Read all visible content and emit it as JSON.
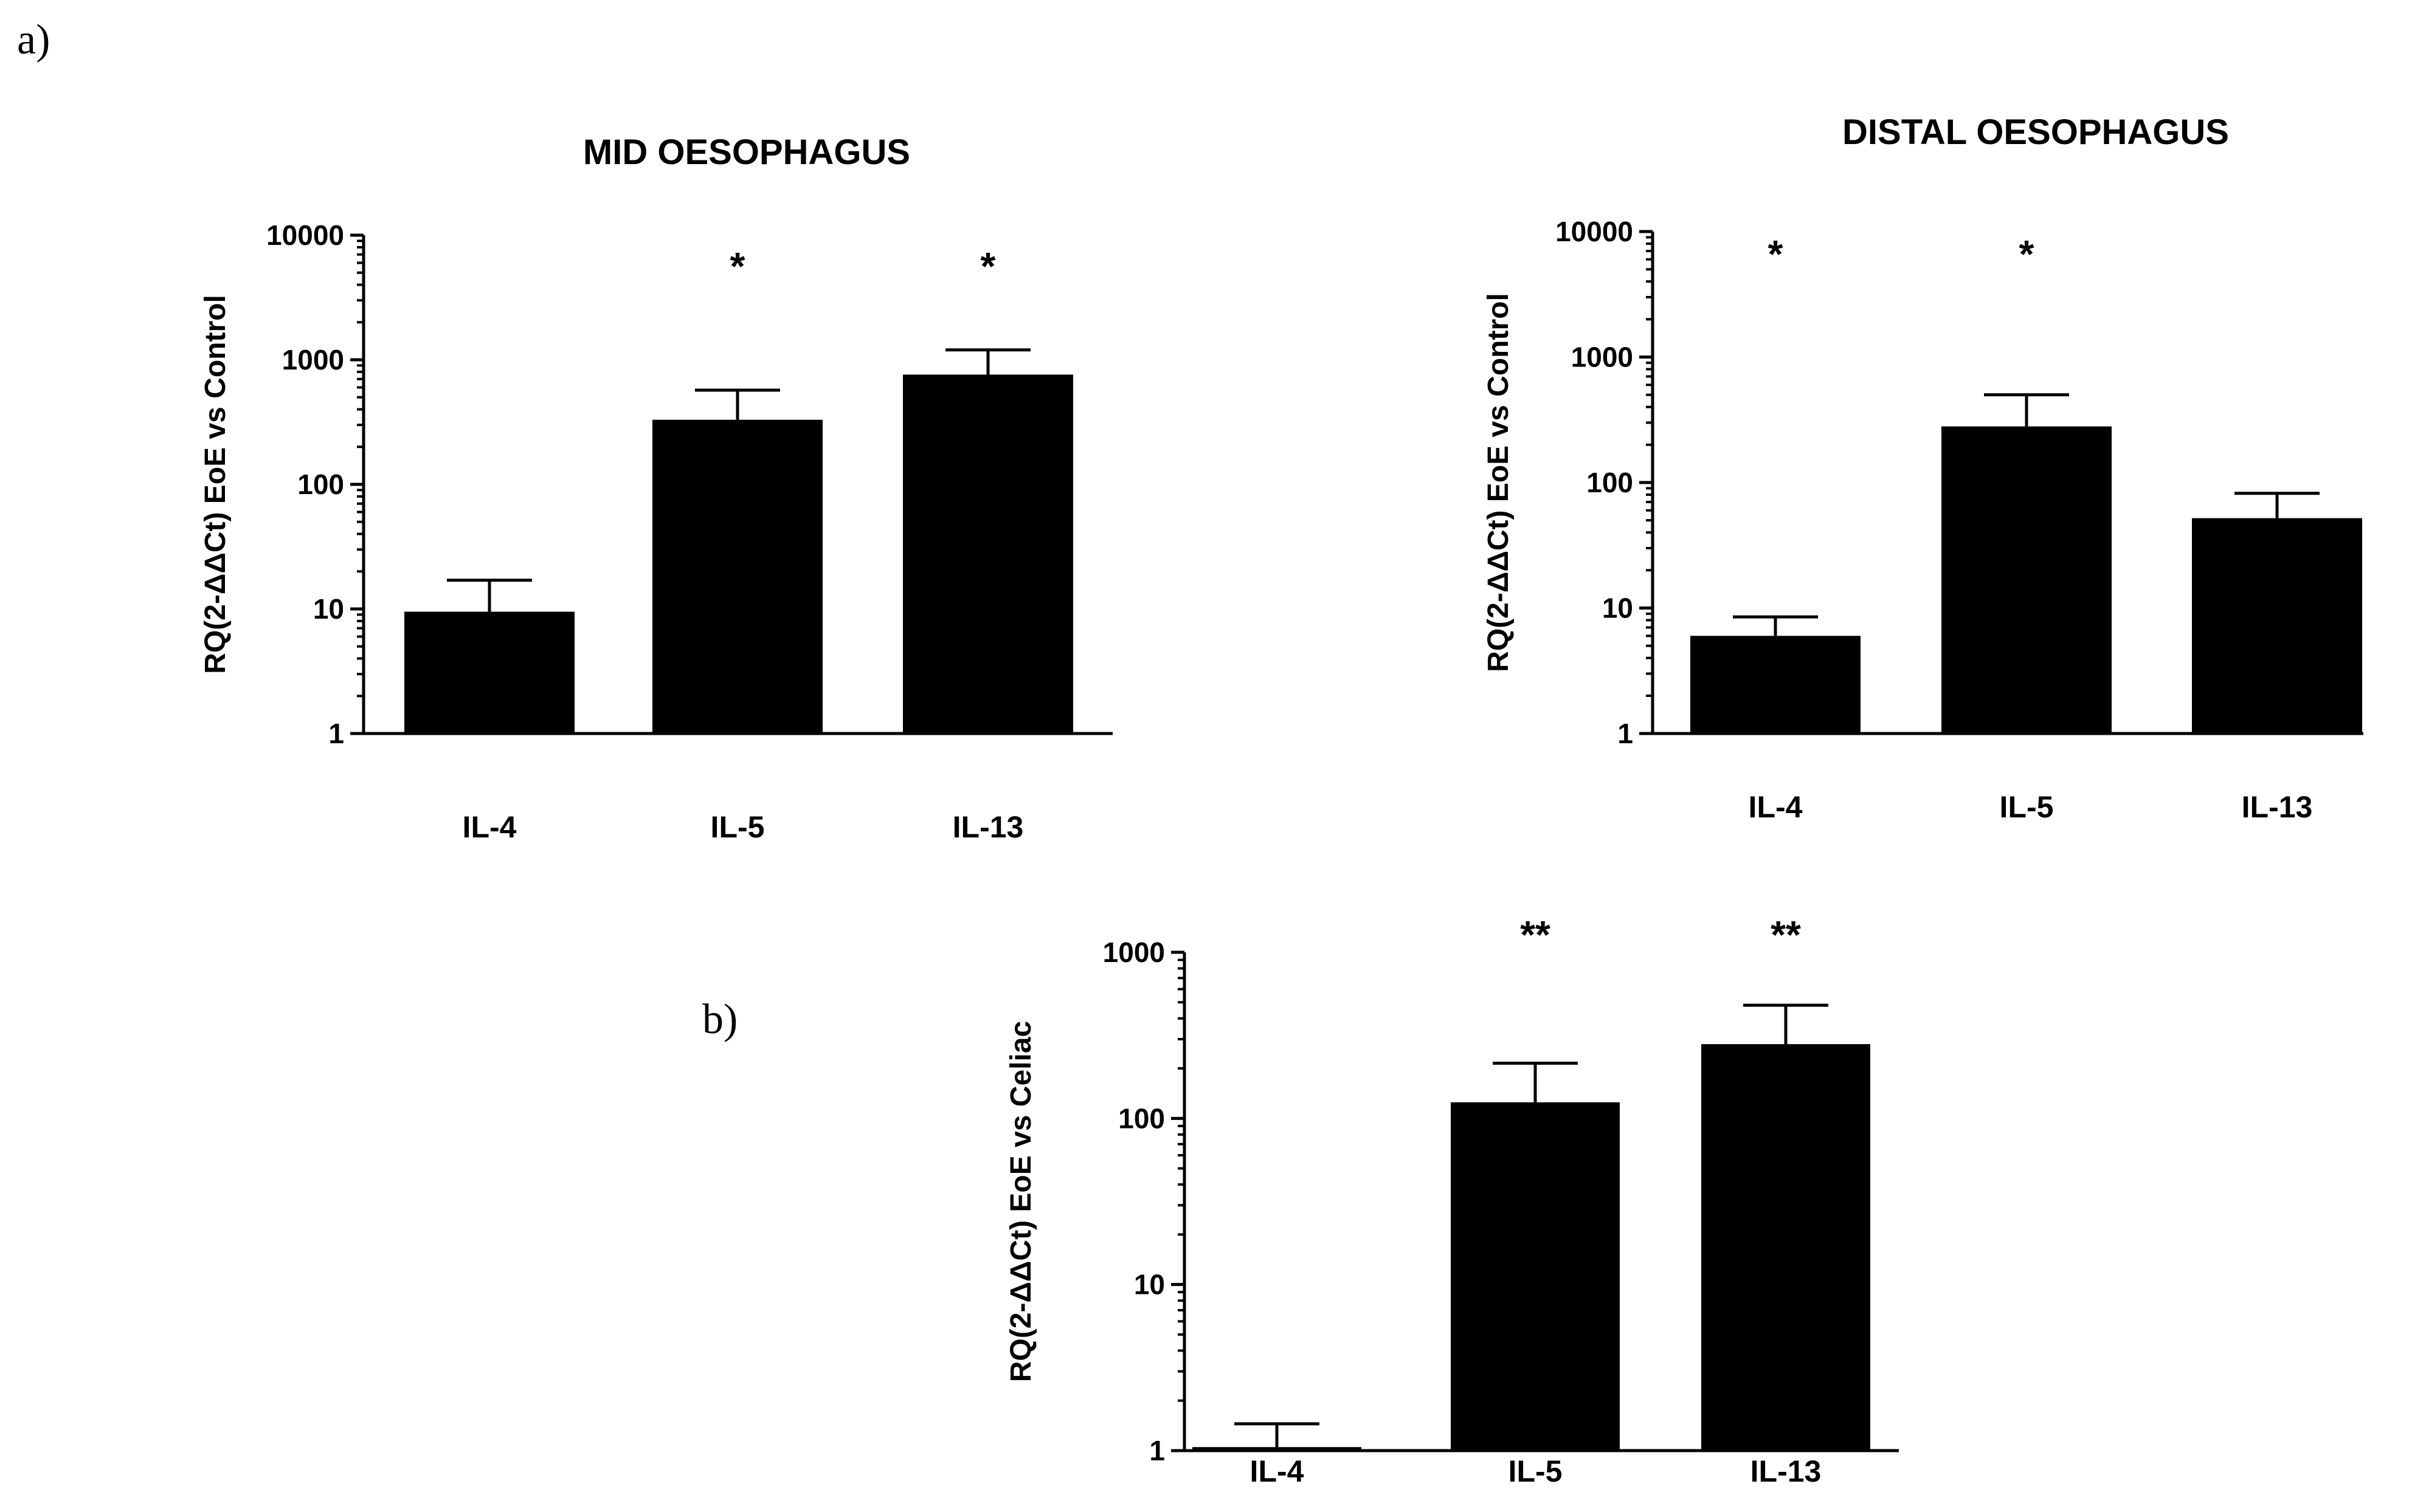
{
  "panel_labels": {
    "a": "a)",
    "b": "b)"
  },
  "colors": {
    "bar": "#000000",
    "axis": "#000000",
    "background": "#ffffff"
  },
  "chart_data": [
    {
      "id": "mid",
      "type": "bar",
      "title": "MID OESOPHAGUS",
      "ylabel": "RQ(2-ΔΔCt) EoE vs Control",
      "yscale": "log",
      "ylim": [
        1,
        10000
      ],
      "yticks": [
        1,
        10,
        100,
        1000,
        10000
      ],
      "ytick_labels": [
        "1",
        "10",
        "100",
        "1000",
        "10000"
      ],
      "categories": [
        "IL-4",
        "IL-5",
        "IL-13"
      ],
      "values": [
        9.5,
        330,
        760
      ],
      "error_upper": [
        17,
        570,
        1200
      ],
      "significance": [
        "",
        "*",
        "*"
      ]
    },
    {
      "id": "distal",
      "type": "bar",
      "title": "DISTAL OESOPHAGUS",
      "ylabel": "RQ(2-ΔΔCt) EoE vs Control",
      "yscale": "log",
      "ylim": [
        1,
        10000
      ],
      "yticks": [
        1,
        10,
        100,
        1000,
        10000
      ],
      "ytick_labels": [
        "1",
        "10",
        "100",
        "1000",
        "10000"
      ],
      "categories": [
        "IL-4",
        "IL-5",
        "IL-13"
      ],
      "values": [
        6,
        280,
        52
      ],
      "error_upper": [
        8.5,
        500,
        82
      ],
      "significance": [
        "*",
        "*",
        ""
      ]
    },
    {
      "id": "celiac",
      "type": "bar",
      "title": "",
      "ylabel": "RQ(2-ΔΔCt) EoE vs Celiac",
      "yscale": "log",
      "ylim": [
        1,
        1000
      ],
      "yticks": [
        1,
        10,
        100,
        1000
      ],
      "ytick_labels": [
        "1",
        "10",
        "100",
        "1000"
      ],
      "categories": [
        "IL-4",
        "IL-5",
        "IL-13"
      ],
      "values": [
        1.05,
        125,
        280
      ],
      "error_upper": [
        1.45,
        215,
        480
      ],
      "significance": [
        "",
        "**",
        "**"
      ]
    }
  ]
}
